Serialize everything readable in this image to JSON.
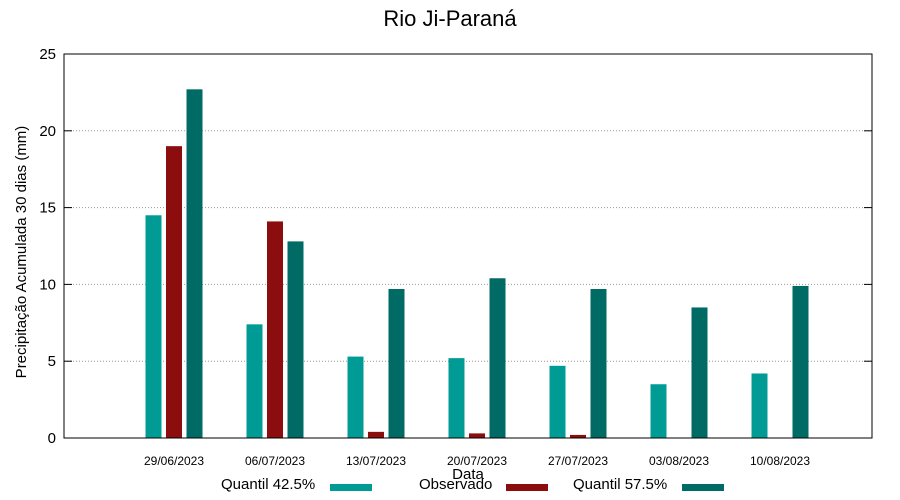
{
  "chart_data": {
    "type": "bar",
    "title": "Rio Ji-Paraná",
    "xlabel": "Data",
    "ylabel": "Precipitação Acumulada 30 dias (mm)",
    "ylim": [
      0,
      25
    ],
    "yticks": [
      0,
      5,
      10,
      15,
      20,
      25
    ],
    "grid": true,
    "legend_position": "bottom",
    "categories": [
      "29/06/2023",
      "06/07/2023",
      "13/07/2023",
      "20/07/2023",
      "27/07/2023",
      "03/08/2023",
      "10/08/2023"
    ],
    "series": [
      {
        "name": "Quantil 42.5%",
        "color": "#009b95",
        "values": [
          14.5,
          7.4,
          5.3,
          5.2,
          4.7,
          3.5,
          4.2
        ]
      },
      {
        "name": "Observado",
        "color": "#8b0d0d",
        "values": [
          19.0,
          14.1,
          0.4,
          0.3,
          0.2,
          null,
          null
        ]
      },
      {
        "name": "Quantil 57.5%",
        "color": "#006a64",
        "values": [
          22.7,
          12.8,
          9.7,
          10.4,
          9.7,
          8.5,
          9.9
        ]
      }
    ]
  }
}
